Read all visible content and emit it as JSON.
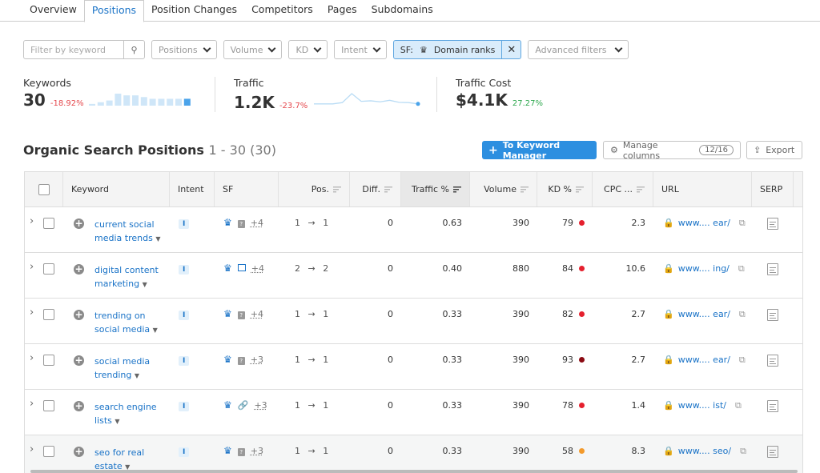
{
  "tabs": [
    "Overview",
    "Positions",
    "Position Changes",
    "Competitors",
    "Pages",
    "Subdomains"
  ],
  "active_tab": 1,
  "filters": {
    "keyword_placeholder": "Filter by keyword",
    "positions": "Positions",
    "volume": "Volume",
    "kd": "KD",
    "intent": "Intent",
    "sf_prefix": "SF:",
    "sf_value": "Domain ranks",
    "advanced": "Advanced filters"
  },
  "metrics": {
    "keywords": {
      "label": "Keywords",
      "value": "30",
      "change": "-18.92%",
      "bars": [
        1,
        2,
        3,
        7,
        6,
        6,
        5,
        4,
        4,
        4,
        4,
        4
      ]
    },
    "traffic": {
      "label": "Traffic",
      "value": "1.2K",
      "change": "-23.7%",
      "series": [
        1,
        1,
        1,
        1.5,
        5,
        2,
        2.2,
        1.8,
        2.4,
        1.6,
        1.5,
        1
      ]
    },
    "cost": {
      "label": "Traffic Cost",
      "value": "$4.1K",
      "change": "27.27%"
    }
  },
  "colors": {
    "negative": "#e5484d",
    "positive": "#2fa84f",
    "accent": "#2d8fe0",
    "link": "#1a73c7"
  },
  "section": {
    "title": "Organic Search Positions",
    "range": "1 - 30 (30)",
    "to_km": "To Keyword Manager",
    "manage": "Manage columns",
    "manage_count": "12/16",
    "export": "Export"
  },
  "columns": [
    "Keyword",
    "Intent",
    "SF",
    "Pos.",
    "Diff.",
    "Traffic %",
    "Volume",
    "KD %",
    "CPC ...",
    "URL",
    "SERP"
  ],
  "rows": [
    {
      "kw1": "current social",
      "kw2": "media trends",
      "intent": "I",
      "sf2": "question-icon",
      "more": "+4",
      "pos_from": "1",
      "pos_to": "1",
      "diff": "0",
      "traffic": "0.63",
      "volume": "390",
      "kd": "79",
      "kd_color": "#e5202e",
      "cpc": "2.3",
      "url1": "www....",
      "url2": "ear/"
    },
    {
      "kw1": "digital content",
      "kw2": "marketing",
      "intent": "I",
      "sf2": "image-icon",
      "more": "+4",
      "pos_from": "2",
      "pos_to": "2",
      "diff": "0",
      "traffic": "0.40",
      "volume": "880",
      "kd": "84",
      "kd_color": "#e5202e",
      "cpc": "10.6",
      "url1": "www....",
      "url2": "ing/"
    },
    {
      "kw1": "trending on",
      "kw2": "social media",
      "intent": "I",
      "sf2": "question-icon",
      "more": "+4",
      "pos_from": "1",
      "pos_to": "1",
      "diff": "0",
      "traffic": "0.33",
      "volume": "390",
      "kd": "82",
      "kd_color": "#e5202e",
      "cpc": "2.7",
      "url1": "www....",
      "url2": "ear/"
    },
    {
      "kw1": "social media",
      "kw2": "trending",
      "intent": "I",
      "sf2": "question-icon",
      "more": "+3",
      "pos_from": "1",
      "pos_to": "1",
      "diff": "0",
      "traffic": "0.33",
      "volume": "390",
      "kd": "93",
      "kd_color": "#8b0a12",
      "cpc": "2.7",
      "url1": "www....",
      "url2": "ear/"
    },
    {
      "kw1": "search engine",
      "kw2": "lists",
      "intent": "I",
      "sf2": "link-icon",
      "more": "+3",
      "pos_from": "1",
      "pos_to": "1",
      "diff": "0",
      "traffic": "0.33",
      "volume": "390",
      "kd": "78",
      "kd_color": "#e5202e",
      "cpc": "1.4",
      "url1": "www....",
      "url2": "ist/"
    },
    {
      "kw1": "seo for real",
      "kw2": "estate",
      "intent": "I",
      "sf2": "question-icon",
      "more": "+3",
      "pos_from": "1",
      "pos_to": "1",
      "diff": "0",
      "traffic": "0.33",
      "volume": "390",
      "kd": "58",
      "kd_color": "#f39a2b",
      "cpc": "8.3",
      "url1": "www....",
      "url2": "seo/"
    }
  ]
}
